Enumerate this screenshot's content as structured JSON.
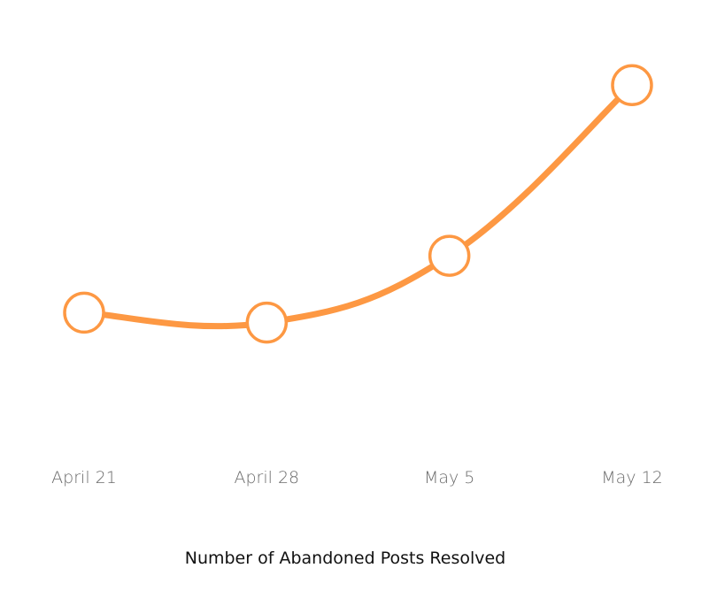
{
  "chart_data": {
    "type": "line",
    "title": "Number of Abandoned Posts Resolved",
    "categories": [
      "April 21",
      "April 28",
      "May 5",
      "May 12"
    ],
    "series": [
      {
        "values": [
          8.5,
          7.8,
          12.5,
          24.5
        ],
        "color": "#fd9843"
      }
    ],
    "ylim": [
      0,
      28
    ],
    "grid": false,
    "legend": "none",
    "marker": "hollow-circle",
    "curve": "smooth",
    "tick_label_color": "#6b6b6b",
    "title_color": "#111111"
  }
}
